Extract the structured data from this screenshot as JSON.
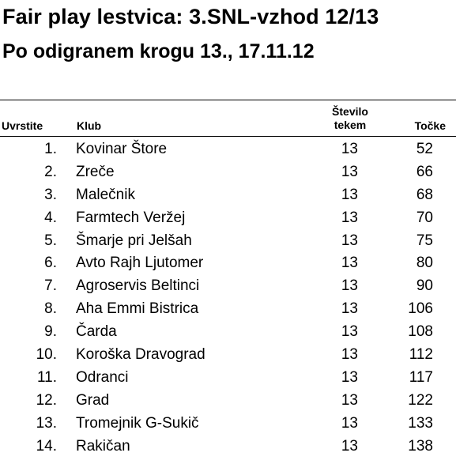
{
  "title": "Fair play lestvica: 3.SNL-vzhod 12/13",
  "subtitle": "Po odigranem krogu 13., 17.11.12",
  "headers": {
    "rank": "Uvrstite",
    "club": "Klub",
    "games_line1": "Število",
    "games_line2": "tekem",
    "points": "Točke"
  },
  "rows": [
    {
      "rank": "1.",
      "club": "Kovinar Štore",
      "games": "13",
      "points": "52"
    },
    {
      "rank": "2.",
      "club": "Zreče",
      "games": "13",
      "points": "66"
    },
    {
      "rank": "3.",
      "club": "Malečnik",
      "games": "13",
      "points": "68"
    },
    {
      "rank": "4.",
      "club": "Farmtech Veržej",
      "games": "13",
      "points": "70"
    },
    {
      "rank": "5.",
      "club": "Šmarje pri Jelšah",
      "games": "13",
      "points": "75"
    },
    {
      "rank": "6.",
      "club": "Avto Rajh Ljutomer",
      "games": "13",
      "points": "80"
    },
    {
      "rank": "7.",
      "club": "Agroservis Beltinci",
      "games": "13",
      "points": "90"
    },
    {
      "rank": "8.",
      "club": "Aha Emmi Bistrica",
      "games": "13",
      "points": "106"
    },
    {
      "rank": "9.",
      "club": "Čarda",
      "games": "13",
      "points": "108"
    },
    {
      "rank": "10.",
      "club": "Koroška Dravograd",
      "games": "13",
      "points": "112"
    },
    {
      "rank": "11.",
      "club": "Odranci",
      "games": "13",
      "points": "117"
    },
    {
      "rank": "12.",
      "club": "Grad",
      "games": "13",
      "points": "122"
    },
    {
      "rank": "13.",
      "club": "Tromejnik G-Sukič",
      "games": "13",
      "points": "133"
    },
    {
      "rank": "14.",
      "club": "Rakičan",
      "games": "13",
      "points": "138"
    }
  ]
}
